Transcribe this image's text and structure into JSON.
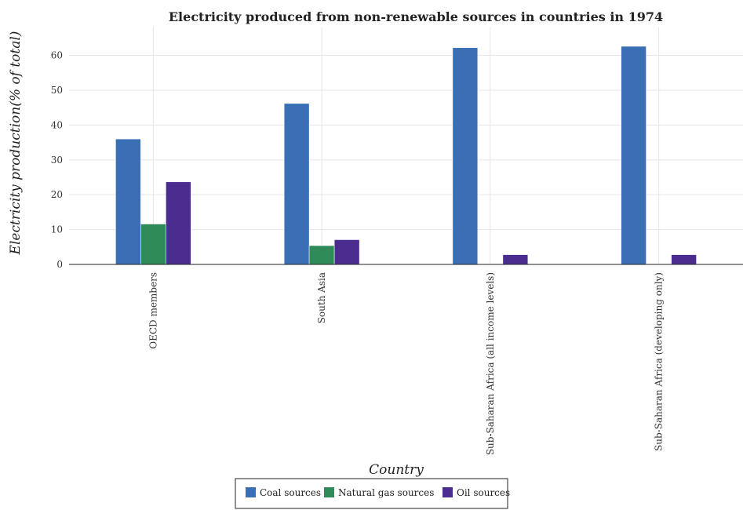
{
  "chart_data": {
    "type": "bar",
    "title": "Electricity produced from non-renewable sources in countries in 1974",
    "xlabel": "Country",
    "ylabel": "Electricity production(% of total)",
    "categories": [
      "OECD members",
      "South Asia",
      "Sub-Saharan Africa (all income levels)",
      "Sub-Saharan Africa (developing only)"
    ],
    "series": [
      {
        "name": "Coal sources",
        "color": "#3a6fb6",
        "values": [
          36.0,
          46.2,
          62.2,
          62.6
        ]
      },
      {
        "name": "Natural gas sources",
        "color": "#2e8b57",
        "values": [
          11.6,
          5.4,
          0.1,
          0.1
        ]
      },
      {
        "name": "Oil sources",
        "color": "#4b2d8f",
        "values": [
          23.7,
          7.1,
          2.8,
          2.8
        ]
      }
    ],
    "yticks": [
      0,
      10,
      20,
      30,
      40,
      50,
      60
    ],
    "ylim": [
      0,
      68
    ],
    "grid": true,
    "legend_position": "bottom-center"
  }
}
